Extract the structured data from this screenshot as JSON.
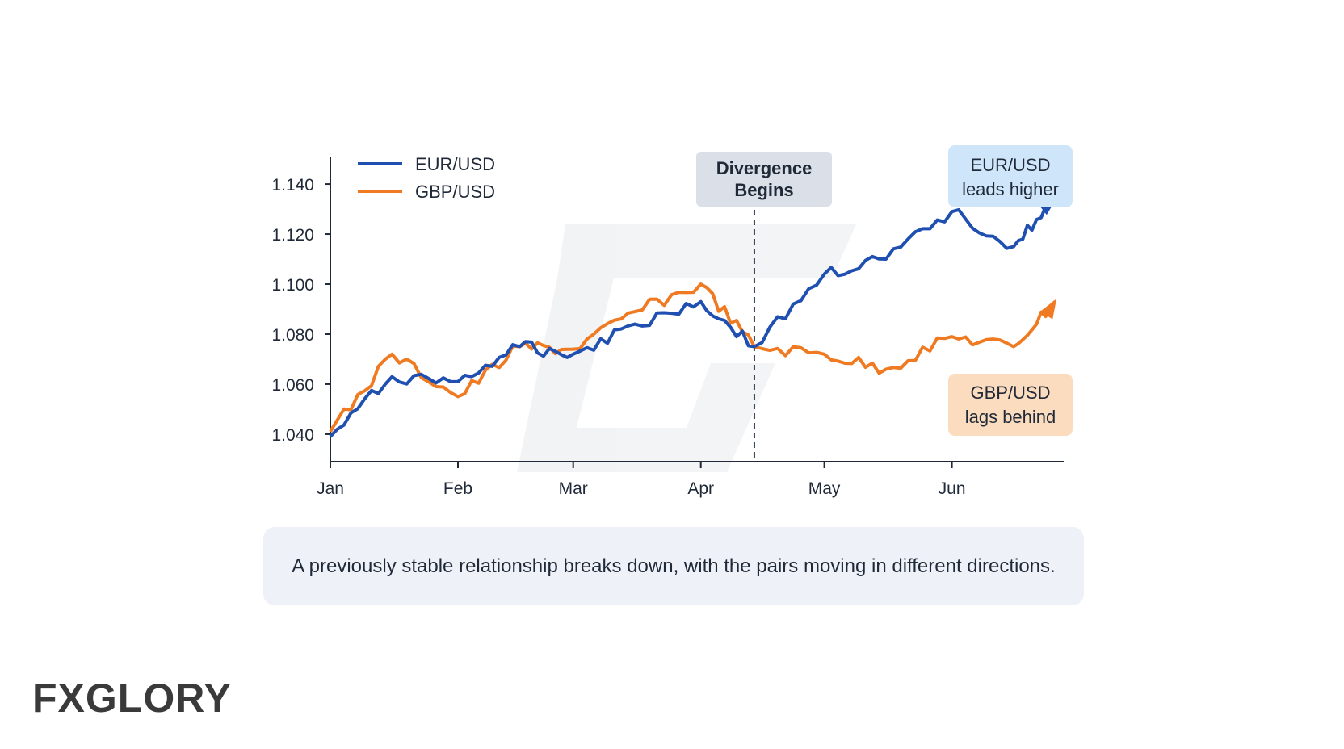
{
  "chart_data": {
    "type": "line",
    "x": [
      "Jan 1",
      "Jan 16",
      "Feb 1",
      "Feb 16",
      "Mar 1",
      "Mar 16",
      "Apr 1",
      "Apr 14",
      "May 1",
      "May 16",
      "Jun 1",
      "Jun 16",
      "Jun 26"
    ],
    "xticks": [
      "Jan",
      "Feb",
      "Mar",
      "Apr",
      "May",
      "Jun"
    ],
    "yticks": [
      "1.040",
      "1.060",
      "1.080",
      "1.100",
      "1.120",
      "1.140"
    ],
    "ylim": [
      1.029,
      1.151
    ],
    "grid": false,
    "legend_position": "top-left",
    "series": [
      {
        "name": "EUR/USD",
        "color": "#1f4fb0",
        "values": [
          1.039,
          1.063,
          1.061,
          1.075,
          1.072,
          1.084,
          1.093,
          1.075,
          1.104,
          1.11,
          1.129,
          1.115,
          1.134
        ]
      },
      {
        "name": "GBP/USD",
        "color": "#f07a22",
        "values": [
          1.041,
          1.072,
          1.055,
          1.075,
          1.074,
          1.089,
          1.1,
          1.075,
          1.072,
          1.066,
          1.079,
          1.075,
          1.093
        ]
      }
    ],
    "annotations": {
      "divergence": {
        "lines": [
          "Divergence",
          "Begins"
        ],
        "x": "Apr 14",
        "bg": "#dbe0e8"
      },
      "eur_note": {
        "lines": [
          "EUR/USD",
          "leads higher"
        ],
        "bg": "#cfe6fa"
      },
      "gbp_note": {
        "lines": [
          "GBP/USD",
          "lags behind"
        ],
        "bg": "#fbdcbf"
      }
    }
  },
  "caption": "A previously stable relationship breaks down, with the pairs moving in different directions.",
  "brand": {
    "prefix": "FX",
    "accent": "",
    "suffix": "GLORY"
  }
}
